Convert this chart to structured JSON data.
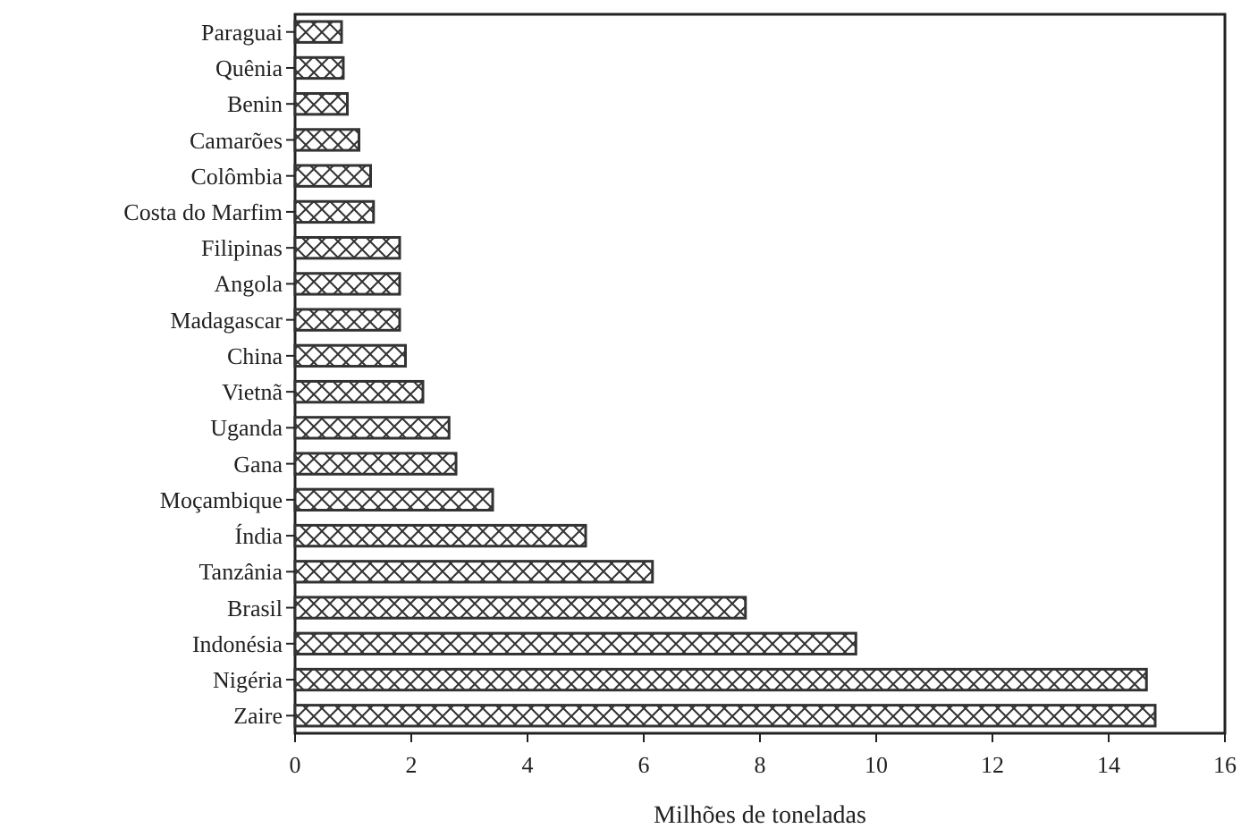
{
  "chart_data": {
    "type": "bar",
    "orientation": "horizontal",
    "xlabel": "Milhões de toneladas",
    "categories": [
      "Paraguai",
      "Quênia",
      "Benin",
      "Camarões",
      "Colômbia",
      "Costa do Marfim",
      "Filipinas",
      "Angola",
      "Madagascar",
      "China",
      "Vietnã",
      "Uganda",
      "Gana",
      "Moçambique",
      "Índia",
      "Tanzânia",
      "Brasil",
      "Indonésia",
      "Nigéria",
      "Zaire"
    ],
    "values": [
      0.8,
      0.83,
      0.9,
      1.1,
      1.3,
      1.35,
      1.8,
      1.8,
      1.8,
      1.9,
      2.2,
      2.65,
      2.77,
      3.4,
      5.0,
      6.15,
      7.75,
      9.65,
      14.65,
      14.8
    ],
    "color": "#333333",
    "xlim": [
      0,
      16
    ],
    "xticks": [
      0,
      2,
      4,
      6,
      8,
      10,
      12,
      14,
      16
    ],
    "grid": false
  }
}
